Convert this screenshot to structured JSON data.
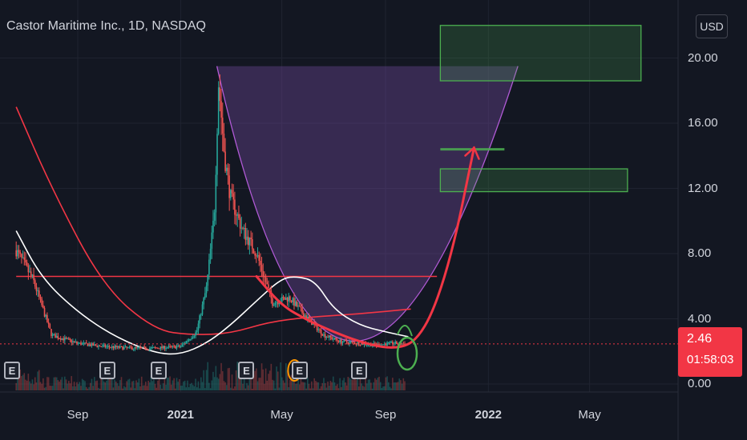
{
  "header": {
    "title": "Castor Maritime Inc., 1D, NASDAQ",
    "currency_button": "USD"
  },
  "price_tag": {
    "price": "2.46",
    "countdown": "01:58:03"
  },
  "earnings_marker_label": "E",
  "colors": {
    "background": "#131722",
    "up": "#26a69a",
    "down": "#ef5350",
    "ma_red": "#f23645",
    "ma_white": "#ffffff",
    "cup_fill": "#7b4ea8",
    "target_green": "#4caf50",
    "price_tag": "#f23645"
  },
  "chart_data": {
    "type": "candlestick",
    "title": "Castor Maritime Inc., 1D, NASDAQ",
    "y_axis": {
      "ticks": [
        "0.00",
        "4.00",
        "8.00",
        "12.00",
        "16.00",
        "20.00"
      ],
      "ylim": [
        0,
        22
      ],
      "unit": "USD"
    },
    "x_axis": {
      "ticks": [
        "Sep",
        "2021",
        "May",
        "Sep",
        "2022",
        "May"
      ],
      "bold_ticks": [
        "2021",
        "2022"
      ]
    },
    "last_price": 2.46,
    "price_line": {
      "value": 2.46,
      "style": "dotted"
    },
    "horizontal_line": {
      "value": 6.6,
      "x_range": [
        "2020-06-20",
        "2021-11-01"
      ]
    },
    "target_zones": [
      {
        "from": 18.6,
        "to": 22.0,
        "x_range": [
          "2021-11-05",
          "2022-07-01"
        ]
      },
      {
        "from": 11.8,
        "to": 13.2,
        "x_range": [
          "2021-11-05",
          "2022-06-15"
        ]
      }
    ],
    "target_line": {
      "value": 14.4,
      "x_range": [
        "2021-11-05",
        "2022-01-20"
      ]
    },
    "cup_pattern": {
      "top": 19.5,
      "bottom": 2.2,
      "x_range": [
        "2021-02-13",
        "2022-02-05"
      ],
      "bottom_date": "2021-09-05"
    },
    "series": [
      {
        "type": "close",
        "dates": [
          "2020-06-20",
          "2020-07-10",
          "2020-08-01",
          "2020-09-01",
          "2020-10-01",
          "2020-11-01",
          "2020-12-01",
          "2021-01-01",
          "2021-01-20",
          "2021-02-01",
          "2021-02-10",
          "2021-02-15",
          "2021-02-22",
          "2021-03-01",
          "2021-03-15",
          "2021-04-01",
          "2021-04-20",
          "2021-05-10",
          "2021-06-01",
          "2021-06-20",
          "2021-07-10",
          "2021-08-01",
          "2021-08-20",
          "2021-09-10",
          "2021-09-25"
        ],
        "values": [
          8.2,
          6.4,
          3.0,
          2.5,
          2.3,
          2.2,
          2.2,
          2.3,
          3.2,
          6.0,
          10.5,
          18.5,
          14.0,
          11.5,
          9.5,
          8.0,
          5.0,
          5.3,
          4.0,
          3.0,
          2.6,
          2.5,
          2.4,
          2.5,
          2.46
        ]
      },
      {
        "name": "MA-white",
        "dates": [
          "2020-06-20",
          "2020-07-20",
          "2020-09-01",
          "2020-10-15",
          "2020-12-01",
          "2021-01-01",
          "2021-02-01",
          "2021-03-01",
          "2021-04-01",
          "2021-05-01",
          "2021-05-20",
          "2021-06-10",
          "2021-07-01",
          "2021-08-01",
          "2021-09-01",
          "2021-09-28"
        ],
        "values": [
          9.4,
          6.5,
          4.4,
          2.9,
          1.9,
          1.8,
          2.5,
          3.6,
          5.1,
          6.5,
          6.6,
          6.3,
          4.6,
          3.6,
          3.2,
          2.9
        ]
      },
      {
        "name": "MA-red",
        "dates": [
          "2020-06-20",
          "2020-08-01",
          "2020-10-01",
          "2020-12-01",
          "2021-01-15",
          "2021-03-01",
          "2021-04-15",
          "2021-06-01",
          "2021-08-01",
          "2021-10-01"
        ],
        "values": [
          17.0,
          12.0,
          6.0,
          3.3,
          3.0,
          3.1,
          3.8,
          4.1,
          4.3,
          4.6
        ]
      },
      {
        "name": "projection",
        "dates": [
          "2021-04-01",
          "2021-05-01",
          "2021-06-01",
          "2021-07-01",
          "2021-08-01",
          "2021-09-01",
          "2021-09-25",
          "2021-10-10",
          "2021-10-25",
          "2021-11-10",
          "2021-11-25",
          "2021-12-05",
          "2021-12-15"
        ],
        "values": [
          6.6,
          4.8,
          3.9,
          3.2,
          2.6,
          2.2,
          2.3,
          2.9,
          4.2,
          6.5,
          9.5,
          12.0,
          14.5
        ]
      }
    ],
    "volume": "shown"
  }
}
